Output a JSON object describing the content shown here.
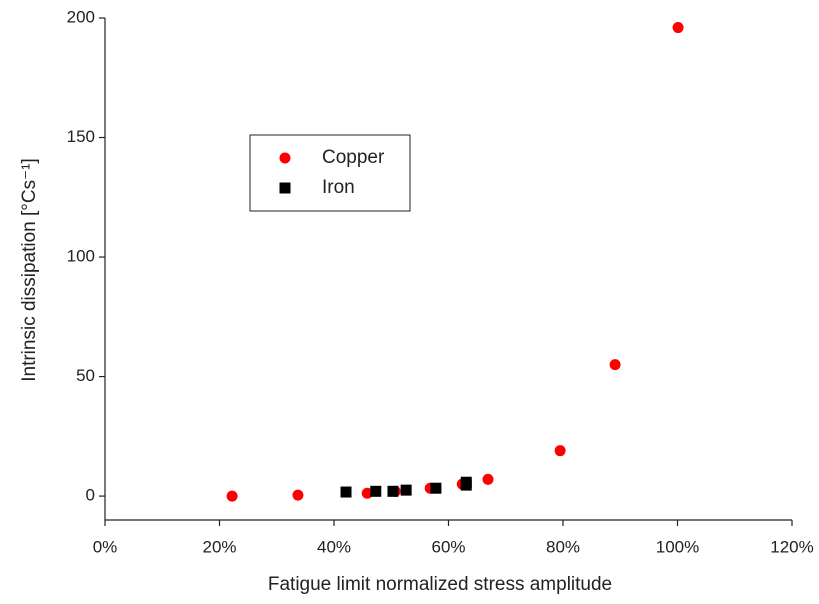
{
  "chart_data": {
    "type": "scatter",
    "x_label": "Fatigue limit normalized stress amplitude",
    "y_label": "Intrinsic dissipation [°Cs⁻¹]",
    "xlim": [
      0,
      120
    ],
    "xticks": [
      {
        "value": 0,
        "label": "0%"
      },
      {
        "value": 20,
        "label": "20%"
      },
      {
        "value": 40,
        "label": "40%"
      },
      {
        "value": 60,
        "label": "60%"
      },
      {
        "value": 80,
        "label": "80%"
      },
      {
        "value": 100,
        "label": "100%"
      },
      {
        "value": 120,
        "label": "120%"
      }
    ],
    "ylim": [
      -10,
      200
    ],
    "yticks": [
      0,
      50,
      100,
      150,
      200
    ],
    "grid": false,
    "series": [
      {
        "name": "Copper",
        "color": "#ff0000",
        "marker": "circle",
        "x": [
          22.2,
          33.7,
          45.8,
          50.7,
          56.8,
          62.4,
          66.9,
          79.5,
          89.1,
          100.1
        ],
        "values": [
          0,
          0.4,
          1.2,
          2,
          3.3,
          5,
          7,
          19,
          55,
          196
        ]
      },
      {
        "name": "Iron",
        "color": "#000000",
        "marker": "square",
        "x": [
          42.1,
          47.3,
          50.3,
          52.6,
          57.8,
          63.1,
          63.1
        ],
        "values": [
          1.7,
          2,
          2,
          2.5,
          3.3,
          4.6,
          5.8
        ]
      }
    ]
  }
}
